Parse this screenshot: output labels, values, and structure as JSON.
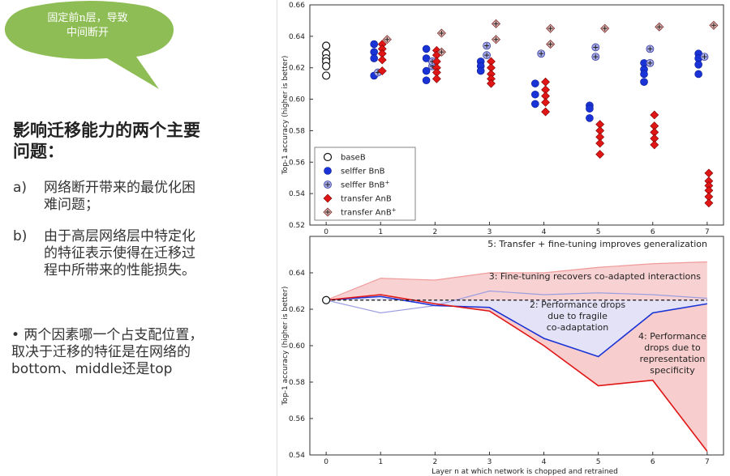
{
  "callout": {
    "line1": "固定前n层，导致",
    "line2": "中间断开",
    "color": "#8dbd54"
  },
  "heading": {
    "line1": "影响迁移能力的两个主要",
    "line2": "问题："
  },
  "points": [
    {
      "label": "a)",
      "line1": "网络断开带来的最优化困",
      "line2": "难问题；"
    },
    {
      "label": "b)",
      "line1": "由于高层网络层中特定化",
      "line2": "的特征表示使得在迁移过",
      "line3": "程中所带来的性能损失。"
    }
  ],
  "note": {
    "line1": "• 两个因素哪一个占支配位置，",
    "line2": "取决于迁移的特征是在网络的",
    "line3": "bottom、middle还是top"
  },
  "chart_data": [
    {
      "type": "scatter",
      "ylabel": "Top-1 accuracy (higher is better)",
      "xlim": [
        -0.3,
        7.3
      ],
      "ylim": [
        0.52,
        0.66
      ],
      "xticks": [
        "0",
        "1",
        "2",
        "3",
        "4",
        "5",
        "6",
        "7"
      ],
      "yticks": [
        "0.52",
        "0.54",
        "0.56",
        "0.58",
        "0.60",
        "0.62",
        "0.64",
        "0.66"
      ],
      "legend": {
        "position": "lower-left",
        "entries": [
          {
            "key": "baseB",
            "label": "baseB"
          },
          {
            "key": "selfferBnB",
            "label": "selffer BnB"
          },
          {
            "key": "selfferBnBplus",
            "label": "selffer BnB",
            "sup": "+"
          },
          {
            "key": "transferAnB",
            "label": "transfer AnB"
          },
          {
            "key": "transferAnBplus",
            "label": "transfer AnB",
            "sup": "+"
          }
        ]
      },
      "series": [
        {
          "key": "baseB",
          "points": [
            [
              0,
              0.634
            ],
            [
              0,
              0.629
            ],
            [
              0,
              0.626
            ],
            [
              0,
              0.624
            ],
            [
              0,
              0.621
            ],
            [
              0,
              0.615
            ]
          ]
        },
        {
          "key": "selfferBnB",
          "points": [
            [
              0.88,
              0.635
            ],
            [
              0.88,
              0.63
            ],
            [
              0.88,
              0.626
            ],
            [
              0.88,
              0.615
            ],
            [
              1.84,
              0.632
            ],
            [
              1.84,
              0.626
            ],
            [
              1.84,
              0.618
            ],
            [
              1.84,
              0.612
            ],
            [
              2.84,
              0.624
            ],
            [
              2.84,
              0.621
            ],
            [
              2.84,
              0.618
            ],
            [
              3.84,
              0.61
            ],
            [
              3.84,
              0.603
            ],
            [
              3.84,
              0.597
            ],
            [
              4.84,
              0.596
            ],
            [
              4.84,
              0.594
            ],
            [
              4.84,
              0.588
            ],
            [
              5.84,
              0.623
            ],
            [
              5.84,
              0.619
            ],
            [
              5.84,
              0.616
            ],
            [
              5.84,
              0.611
            ],
            [
              6.84,
              0.629
            ],
            [
              6.84,
              0.626
            ],
            [
              6.84,
              0.622
            ],
            [
              6.84,
              0.616
            ]
          ]
        },
        {
          "key": "selfferBnBplus",
          "points": [
            [
              0.95,
              0.617
            ],
            [
              1.95,
              0.621
            ],
            [
              1.95,
              0.624
            ],
            [
              2.95,
              0.634
            ],
            [
              2.95,
              0.628
            ],
            [
              3.95,
              0.629
            ],
            [
              4.95,
              0.633
            ],
            [
              4.95,
              0.627
            ],
            [
              5.95,
              0.632
            ],
            [
              5.95,
              0.623
            ],
            [
              6.95,
              0.627
            ]
          ]
        },
        {
          "key": "transferAnB",
          "points": [
            [
              1.03,
              0.635
            ],
            [
              1.03,
              0.632
            ],
            [
              1.03,
              0.629
            ],
            [
              1.03,
              0.625
            ],
            [
              1.03,
              0.618
            ],
            [
              2.03,
              0.631
            ],
            [
              2.03,
              0.628
            ],
            [
              2.03,
              0.624
            ],
            [
              2.03,
              0.62
            ],
            [
              2.03,
              0.617
            ],
            [
              2.03,
              0.613
            ],
            [
              3.03,
              0.624
            ],
            [
              3.03,
              0.62
            ],
            [
              3.03,
              0.616
            ],
            [
              3.03,
              0.613
            ],
            [
              3.03,
              0.61
            ],
            [
              4.03,
              0.611
            ],
            [
              4.03,
              0.606
            ],
            [
              4.03,
              0.602
            ],
            [
              4.03,
              0.598
            ],
            [
              4.03,
              0.592
            ],
            [
              5.03,
              0.584
            ],
            [
              5.03,
              0.58
            ],
            [
              5.03,
              0.576
            ],
            [
              5.03,
              0.572
            ],
            [
              5.03,
              0.565
            ],
            [
              6.03,
              0.59
            ],
            [
              6.03,
              0.583
            ],
            [
              6.03,
              0.579
            ],
            [
              6.03,
              0.575
            ],
            [
              6.03,
              0.571
            ],
            [
              7.03,
              0.553
            ],
            [
              7.03,
              0.548
            ],
            [
              7.03,
              0.545
            ],
            [
              7.03,
              0.542
            ],
            [
              7.03,
              0.538
            ],
            [
              7.03,
              0.534
            ]
          ]
        },
        {
          "key": "transferAnBplus",
          "points": [
            [
              1.12,
              0.638
            ],
            [
              2.12,
              0.642
            ],
            [
              2.12,
              0.63
            ],
            [
              3.12,
              0.648
            ],
            [
              3.12,
              0.638
            ],
            [
              4.12,
              0.645
            ],
            [
              4.12,
              0.635
            ],
            [
              5.12,
              0.645
            ],
            [
              6.12,
              0.646
            ],
            [
              7.12,
              0.647
            ]
          ]
        }
      ]
    },
    {
      "type": "area",
      "ylabel": "Top-1 accuracy (higher is better)",
      "xlabel": "Layer n at which network is chopped and retrained",
      "xlim": [
        -0.3,
        7.3
      ],
      "ylim": [
        0.54,
        0.66
      ],
      "xticks": [
        "0",
        "1",
        "2",
        "3",
        "4",
        "5",
        "6",
        "7"
      ],
      "yticks": [
        "0.54",
        "0.56",
        "0.58",
        "0.60",
        "0.62",
        "0.64"
      ],
      "x": [
        0,
        1,
        2,
        3,
        4,
        5,
        6,
        7
      ],
      "baseline": 0.625,
      "series": [
        {
          "name": "transfer AnB+",
          "values": [
            0.625,
            0.637,
            0.636,
            0.64,
            0.64,
            0.643,
            0.645,
            0.646
          ]
        },
        {
          "name": "selffer BnB+",
          "values": [
            0.625,
            0.618,
            0.622,
            0.63,
            0.628,
            0.629,
            0.628,
            0.626
          ]
        },
        {
          "name": "selffer BnB",
          "values": [
            0.625,
            0.627,
            0.622,
            0.621,
            0.604,
            0.594,
            0.618,
            0.623
          ]
        },
        {
          "name": "transfer AnB",
          "values": [
            0.625,
            0.628,
            0.623,
            0.619,
            0.6,
            0.578,
            0.581,
            0.542
          ]
        }
      ],
      "annotations": [
        {
          "text": "5: Transfer + fine-tuning improves generalization"
        },
        {
          "text": "3: Fine-tuning recovers co-adapted interactions"
        },
        {
          "lines": [
            "2: Performance drops",
            "due to fragile",
            "co-adaptation"
          ]
        },
        {
          "lines": [
            "4: Performance",
            "drops due to",
            "representation",
            "specificity"
          ]
        }
      ]
    }
  ]
}
